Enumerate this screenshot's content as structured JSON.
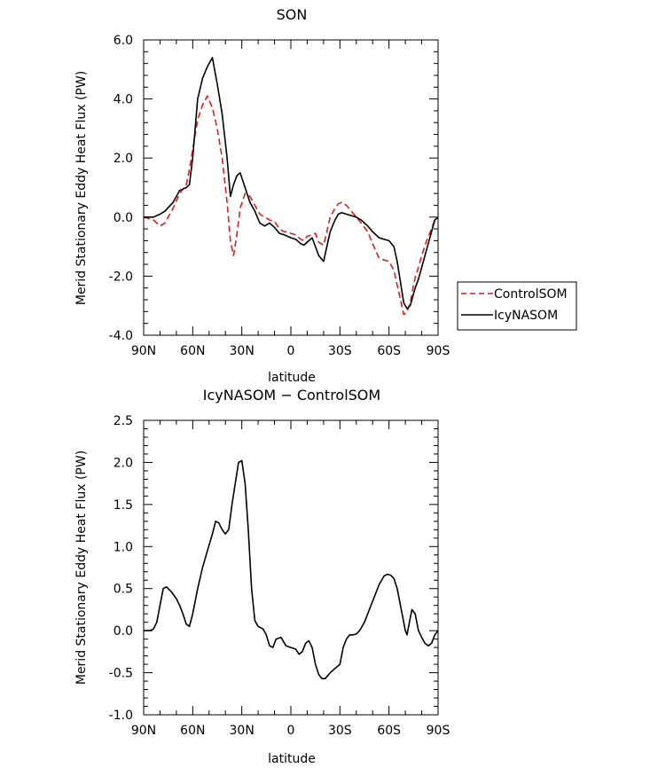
{
  "chart_data": [
    {
      "type": "line",
      "title": "SON",
      "xlabel": "latitude",
      "ylabel": "Merid Stationary Eddy Heat Flux (PW)",
      "x_ticks": [
        "90N",
        "60N",
        "30N",
        "0",
        "30S",
        "60S",
        "90S"
      ],
      "x_tick_values": [
        90,
        60,
        30,
        0,
        -30,
        -60,
        -90
      ],
      "xlim": [
        90,
        -90
      ],
      "y_ticks": [
        "6.0",
        "4.0",
        "2.0",
        "0.0",
        "-2.0",
        "-4.0"
      ],
      "ylim": [
        -4.0,
        6.0
      ],
      "legend_position": "right",
      "series": [
        {
          "name": "ControlSOM",
          "color": "#e41a1c",
          "dash": "dashed",
          "x": [
            90,
            84,
            80,
            77,
            72,
            68,
            64,
            62,
            60,
            57,
            54,
            51,
            48,
            45,
            42,
            39,
            37,
            35,
            33,
            31,
            28,
            25,
            22,
            19,
            16,
            13,
            10,
            7,
            4,
            2,
            0,
            -3,
            -6,
            -8,
            -10,
            -13,
            -15,
            -17,
            -20,
            -22,
            -24,
            -27,
            -29,
            -31,
            -34,
            -37,
            -40,
            -43,
            -47,
            -50,
            -54,
            -57,
            -60,
            -63,
            -65,
            -67,
            -69,
            -71,
            -73,
            -74,
            -75,
            -76,
            -78,
            -80,
            -83,
            -86,
            -88,
            -90
          ],
          "y": [
            0.0,
            -0.1,
            -0.3,
            -0.2,
            0.3,
            0.8,
            1.1,
            1.6,
            2.3,
            3.3,
            3.8,
            4.1,
            3.7,
            3.0,
            2.0,
            0.5,
            -0.8,
            -1.3,
            -0.6,
            0.3,
            0.8,
            0.7,
            0.4,
            0.1,
            0.0,
            -0.1,
            -0.15,
            -0.4,
            -0.5,
            -0.5,
            -0.55,
            -0.6,
            -0.75,
            -0.8,
            -0.65,
            -0.6,
            -0.55,
            -0.85,
            -0.95,
            -0.5,
            0.0,
            0.3,
            0.45,
            0.5,
            0.4,
            0.2,
            0.0,
            -0.2,
            -0.5,
            -0.9,
            -1.4,
            -1.45,
            -1.5,
            -1.8,
            -2.3,
            -2.8,
            -3.3,
            -3.2,
            -2.9,
            -2.6,
            -2.3,
            -2.05,
            -1.7,
            -1.3,
            -0.8,
            -0.4,
            -0.1,
            0.0
          ]
        },
        {
          "name": "IcyNASOM",
          "color": "#000000",
          "dash": "solid",
          "x": [
            90,
            84,
            80,
            77,
            72,
            68,
            64,
            62,
            60,
            57,
            54,
            51,
            48,
            45,
            42,
            39,
            37,
            35,
            33,
            31,
            28,
            25,
            22,
            19,
            16,
            13,
            10,
            7,
            4,
            2,
            0,
            -3,
            -6,
            -8,
            -10,
            -13,
            -15,
            -17,
            -20,
            -22,
            -24,
            -27,
            -29,
            -31,
            -34,
            -37,
            -40,
            -43,
            -47,
            -50,
            -54,
            -57,
            -60,
            -63,
            -65,
            -67,
            -69,
            -71,
            -73,
            -74,
            -75,
            -76,
            -78,
            -80,
            -83,
            -86,
            -88,
            -90
          ],
          "y": [
            0.0,
            0.0,
            0.1,
            0.2,
            0.5,
            0.9,
            1.0,
            1.1,
            2.0,
            4.0,
            4.7,
            5.1,
            5.4,
            4.5,
            3.5,
            2.0,
            0.7,
            1.1,
            1.4,
            1.5,
            1.0,
            0.5,
            0.2,
            -0.2,
            -0.3,
            -0.2,
            -0.35,
            -0.55,
            -0.6,
            -0.65,
            -0.7,
            -0.75,
            -0.9,
            -0.95,
            -0.85,
            -0.7,
            -1.0,
            -1.3,
            -1.5,
            -1.0,
            -0.5,
            -0.1,
            0.1,
            0.15,
            0.1,
            0.05,
            0.0,
            -0.1,
            -0.3,
            -0.5,
            -0.7,
            -0.75,
            -0.8,
            -1.0,
            -1.5,
            -2.2,
            -2.9,
            -3.1,
            -3.0,
            -2.8,
            -2.6,
            -2.4,
            -2.1,
            -1.7,
            -1.1,
            -0.5,
            -0.1,
            0.0
          ]
        }
      ]
    },
    {
      "type": "line",
      "title": "IcyNASOM − ControlSOM",
      "xlabel": "latitude",
      "ylabel": "Merid Stationary Eddy Heat Flux (PW)",
      "x_ticks": [
        "90N",
        "60N",
        "30N",
        "0",
        "30S",
        "60S",
        "90S"
      ],
      "x_tick_values": [
        90,
        60,
        30,
        0,
        -30,
        -60,
        -90
      ],
      "xlim": [
        90,
        -90
      ],
      "y_ticks": [
        "2.5",
        "2.0",
        "1.5",
        "1.0",
        "0.5",
        "0.0",
        "-0.5",
        "-1.0"
      ],
      "ylim": [
        -1.0,
        2.5
      ],
      "series": [
        {
          "color": "#000000",
          "dash": "solid",
          "x": [
            90,
            86,
            84,
            82,
            80,
            78,
            76,
            73,
            70,
            68,
            66,
            64,
            62,
            60,
            57,
            54,
            51,
            48,
            46,
            44,
            42,
            40,
            38,
            36,
            34,
            32,
            30,
            28,
            26,
            24,
            22,
            20,
            17,
            15,
            13,
            11,
            9,
            6,
            3,
            0,
            -3,
            -5,
            -7,
            -9,
            -11,
            -13,
            -15,
            -17,
            -19,
            -21,
            -24,
            -27,
            -30,
            -32,
            -34,
            -36,
            -38,
            -40,
            -42,
            -45,
            -48,
            -51,
            -54,
            -57,
            -59,
            -61,
            -63,
            -65,
            -67,
            -69,
            -70,
            -71,
            -72,
            -74,
            -76,
            -78,
            -80,
            -82,
            -84,
            -86,
            -88,
            -90
          ],
          "y": [
            0.0,
            0.0,
            0.02,
            0.1,
            0.3,
            0.5,
            0.52,
            0.46,
            0.38,
            0.3,
            0.2,
            0.08,
            0.05,
            0.2,
            0.5,
            0.75,
            0.95,
            1.15,
            1.3,
            1.28,
            1.2,
            1.15,
            1.2,
            1.5,
            1.75,
            2.0,
            2.02,
            1.75,
            1.2,
            0.5,
            0.12,
            0.05,
            0.02,
            -0.05,
            -0.18,
            -0.2,
            -0.1,
            -0.08,
            -0.18,
            -0.2,
            -0.22,
            -0.28,
            -0.25,
            -0.15,
            -0.12,
            -0.2,
            -0.4,
            -0.52,
            -0.57,
            -0.57,
            -0.5,
            -0.45,
            -0.4,
            -0.2,
            -0.1,
            -0.05,
            -0.05,
            -0.04,
            0.0,
            0.1,
            0.25,
            0.4,
            0.55,
            0.65,
            0.67,
            0.66,
            0.62,
            0.5,
            0.3,
            0.1,
            0.0,
            -0.05,
            0.05,
            0.25,
            0.2,
            0.0,
            -0.08,
            -0.15,
            -0.18,
            -0.15,
            -0.05,
            0.0
          ]
        }
      ]
    }
  ]
}
